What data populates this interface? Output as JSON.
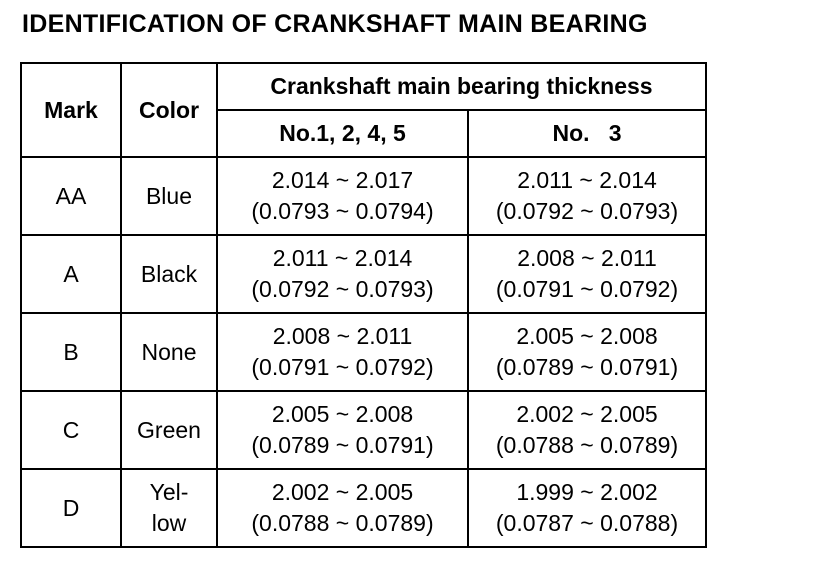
{
  "title": "IDENTIFICATION OF CRANKSHAFT MAIN BEARING",
  "table": {
    "headers": {
      "mark": "Mark",
      "color": "Color",
      "thickness": "Crankshaft main bearing thickness",
      "group_a": "No.1, 2, 4, 5",
      "group_b": "No.   3"
    },
    "rows": [
      {
        "mark": "AA",
        "color_line1": "Blue",
        "color_line2": "",
        "a_mm": "2.014 ~ 2.017",
        "a_in": "(0.0793 ~ 0.0794)",
        "b_mm": "2.011 ~ 2.014",
        "b_in": "(0.0792 ~ 0.0793)"
      },
      {
        "mark": "A",
        "color_line1": "Black",
        "color_line2": "",
        "a_mm": "2.011 ~ 2.014",
        "a_in": "(0.0792 ~ 0.0793)",
        "b_mm": "2.008 ~ 2.011",
        "b_in": "(0.0791 ~ 0.0792)"
      },
      {
        "mark": "B",
        "color_line1": "None",
        "color_line2": "",
        "a_mm": "2.008 ~ 2.011",
        "a_in": "(0.0791 ~ 0.0792)",
        "b_mm": "2.005 ~ 2.008",
        "b_in": "(0.0789 ~ 0.0791)"
      },
      {
        "mark": "C",
        "color_line1": "Green",
        "color_line2": "",
        "a_mm": "2.005 ~ 2.008",
        "a_in": "(0.0789 ~ 0.0791)",
        "b_mm": "2.002 ~ 2.005",
        "b_in": "(0.0788 ~ 0.0789)"
      },
      {
        "mark": "D",
        "color_line1": "Yel-",
        "color_line2": "low",
        "a_mm": "2.002 ~ 2.005",
        "a_in": "(0.0788 ~ 0.0789)",
        "b_mm": "1.999 ~ 2.002",
        "b_in": "(0.0787 ~ 0.0788)"
      }
    ]
  }
}
